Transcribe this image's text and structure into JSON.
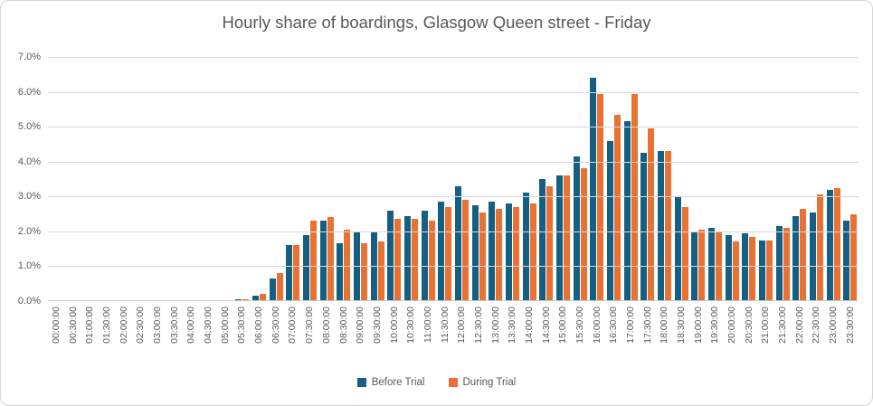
{
  "chart_data": {
    "type": "bar",
    "title": "Hourly share of boardings, Glasgow Queen street - Friday",
    "xlabel": "",
    "ylabel": "",
    "ylim": [
      0,
      7
    ],
    "ytick_step": 1,
    "ytick_labels": [
      "0.0%",
      "1.0%",
      "2.0%",
      "3.0%",
      "4.0%",
      "5.0%",
      "6.0%",
      "7.0%"
    ],
    "grid": true,
    "legend_position": "bottom",
    "value_unit": "percent",
    "categories": [
      "00:00:00",
      "00:30:00",
      "01:00:00",
      "01:30:00",
      "02:00:00",
      "02:30:00",
      "03:00:00",
      "03:30:00",
      "04:00:00",
      "04:30:00",
      "05:00:00",
      "05:30:00",
      "06:00:00",
      "06:30:00",
      "07:00:00",
      "07:30:00",
      "08:00:00",
      "08:30:00",
      "09:00:00",
      "09:30:00",
      "10:00:00",
      "10:30:00",
      "11:00:00",
      "11:30:00",
      "12:00:00",
      "12:30:00",
      "13:00:00",
      "13:30:00",
      "14:00:00",
      "14:30:00",
      "15:00:00",
      "15:30:00",
      "16:00:00",
      "16:30:00",
      "17:00:00",
      "17:30:00",
      "18:00:00",
      "18:30:00",
      "19:00:00",
      "19:30:00",
      "20:00:00",
      "20:30:00",
      "21:00:00",
      "21:30:00",
      "22:00:00",
      "22:30:00",
      "23:00:00",
      "23:30:00"
    ],
    "series": [
      {
        "name": "Before Trial",
        "color": "#156082",
        "values": [
          0,
          0,
          0,
          0,
          0,
          0,
          0,
          0,
          0,
          0,
          0,
          0.05,
          0.15,
          0.65,
          1.6,
          1.9,
          2.3,
          1.65,
          2.0,
          2.0,
          2.6,
          2.45,
          2.6,
          2.85,
          3.3,
          2.75,
          2.85,
          2.8,
          3.1,
          3.5,
          3.6,
          4.15,
          6.4,
          4.6,
          5.15,
          4.25,
          4.3,
          3.0,
          2.0,
          2.1,
          1.9,
          1.95,
          1.75,
          2.15,
          2.45,
          2.55,
          3.2,
          2.3
        ]
      },
      {
        "name": "During Trial",
        "color": "#E97132",
        "values": [
          0,
          0,
          0,
          0,
          0,
          0,
          0,
          0,
          0,
          0,
          0,
          0.05,
          0.2,
          0.8,
          1.6,
          2.3,
          2.4,
          2.05,
          1.65,
          1.7,
          2.35,
          2.35,
          2.3,
          2.7,
          2.9,
          2.55,
          2.65,
          2.7,
          2.8,
          3.3,
          3.6,
          3.8,
          5.95,
          5.35,
          5.95,
          4.95,
          4.3,
          2.7,
          2.05,
          2.0,
          1.7,
          1.85,
          1.75,
          2.1,
          2.65,
          3.05,
          3.25,
          2.5
        ]
      }
    ]
  },
  "colors": {
    "gridline": "#D9D9D9",
    "axis_text": "#595959",
    "frame_border": "#D6D6D6",
    "background": "#FFFFFF"
  }
}
